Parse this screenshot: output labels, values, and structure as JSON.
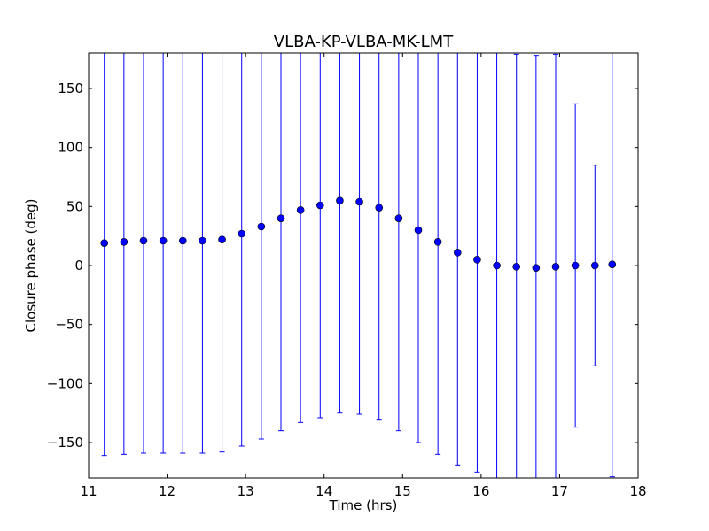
{
  "chart_data": {
    "type": "scatter",
    "title": "VLBA-KP-VLBA-MK-LMT",
    "xlabel": "Time (hrs)",
    "ylabel": "Closure phase (deg)",
    "xlim": [
      11,
      18
    ],
    "ylim": [
      -180,
      180
    ],
    "xticks": [
      11,
      12,
      13,
      14,
      15,
      16,
      17,
      18
    ],
    "yticks": [
      -150,
      -100,
      -50,
      0,
      50,
      100,
      150
    ],
    "xtick_labels": [
      "11",
      "12",
      "13",
      "14",
      "15",
      "16",
      "17",
      "18"
    ],
    "ytick_labels": [
      "−150",
      "−100",
      "−50",
      "0",
      "50",
      "100",
      "150"
    ],
    "grid": false,
    "colors": {
      "marker": "#0000ff",
      "errorbar": "#0000ff",
      "frame": "#000000"
    },
    "series": [
      {
        "marker": "circle",
        "x": [
          11.2,
          11.45,
          11.7,
          11.95,
          12.2,
          12.45,
          12.7,
          12.95,
          13.2,
          13.45,
          13.7,
          13.95,
          14.2,
          14.45,
          14.7,
          14.95,
          15.2,
          15.45,
          15.7,
          15.95,
          16.2,
          16.45,
          16.7,
          16.95,
          17.2,
          17.45,
          17.67
        ],
        "y": [
          19,
          20,
          21,
          21,
          21,
          21,
          22,
          27,
          33,
          40,
          47,
          51,
          55,
          54,
          49,
          40,
          30,
          20,
          11,
          5,
          0,
          -1,
          -2,
          -1,
          0,
          0,
          1
        ],
        "yerr": [
          180,
          180,
          180,
          180,
          180,
          180,
          180,
          180,
          180,
          180,
          180,
          180,
          180,
          180,
          180,
          180,
          180,
          180,
          180,
          180,
          180,
          180,
          180,
          180,
          137,
          85,
          180
        ]
      }
    ]
  }
}
